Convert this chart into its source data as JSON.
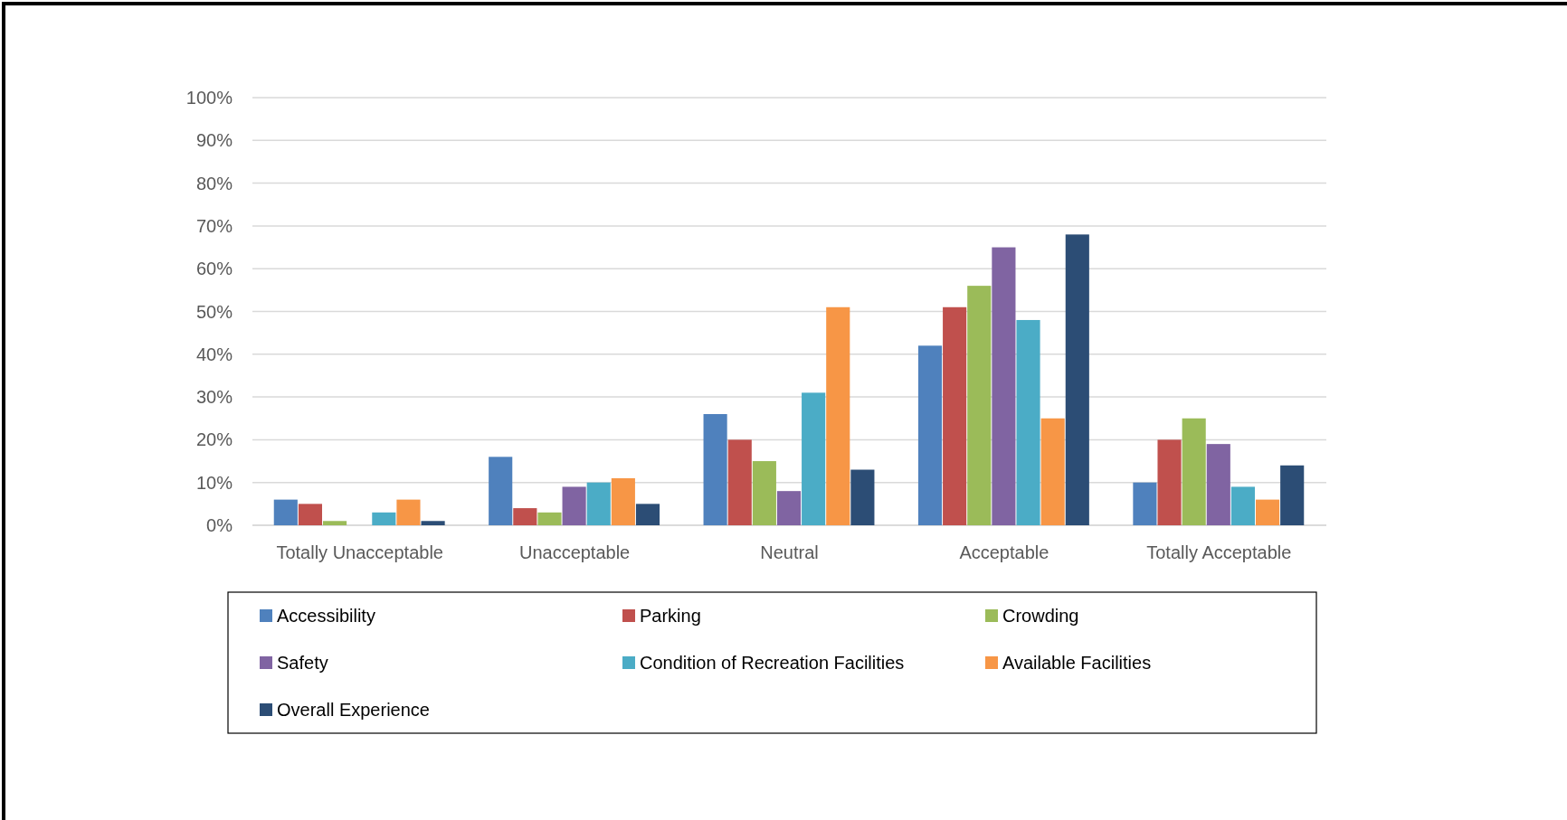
{
  "chart_data": {
    "type": "bar",
    "categories": [
      "Totally Unacceptable",
      "Unacceptable",
      "Neutral",
      "Acceptable",
      "Totally Acceptable"
    ],
    "series": [
      {
        "name": "Accessibility",
        "color": "#4f81bd",
        "values": [
          6,
          16,
          26,
          42,
          10
        ]
      },
      {
        "name": "Parking",
        "color": "#c0504d",
        "values": [
          5,
          4,
          20,
          51,
          20
        ]
      },
      {
        "name": "Crowding",
        "color": "#9bbb59",
        "values": [
          1,
          3,
          15,
          56,
          25
        ]
      },
      {
        "name": "Safety",
        "color": "#8064a2",
        "values": [
          0,
          9,
          8,
          65,
          19
        ]
      },
      {
        "name": "Condition of Recreation Facilities",
        "color": "#4bacc6",
        "values": [
          3,
          10,
          31,
          48,
          9
        ]
      },
      {
        "name": "Available Facilities",
        "color": "#f79646",
        "values": [
          6,
          11,
          51,
          25,
          6
        ]
      },
      {
        "name": "Overall Experience",
        "color": "#2c4d75",
        "values": [
          1,
          5,
          13,
          68,
          14
        ]
      }
    ],
    "ylim": [
      0,
      100
    ],
    "yticks": [
      {
        "value": 0,
        "label": "0%"
      },
      {
        "value": 10,
        "label": "10%"
      },
      {
        "value": 20,
        "label": "20%"
      },
      {
        "value": 30,
        "label": "30%"
      },
      {
        "value": 40,
        "label": "40%"
      },
      {
        "value": 50,
        "label": "50%"
      },
      {
        "value": 60,
        "label": "60%"
      },
      {
        "value": 70,
        "label": "70%"
      },
      {
        "value": 80,
        "label": "80%"
      },
      {
        "value": 90,
        "label": "90%"
      },
      {
        "value": 100,
        "label": "100%"
      }
    ],
    "grid": "y",
    "legend": "bottom"
  }
}
